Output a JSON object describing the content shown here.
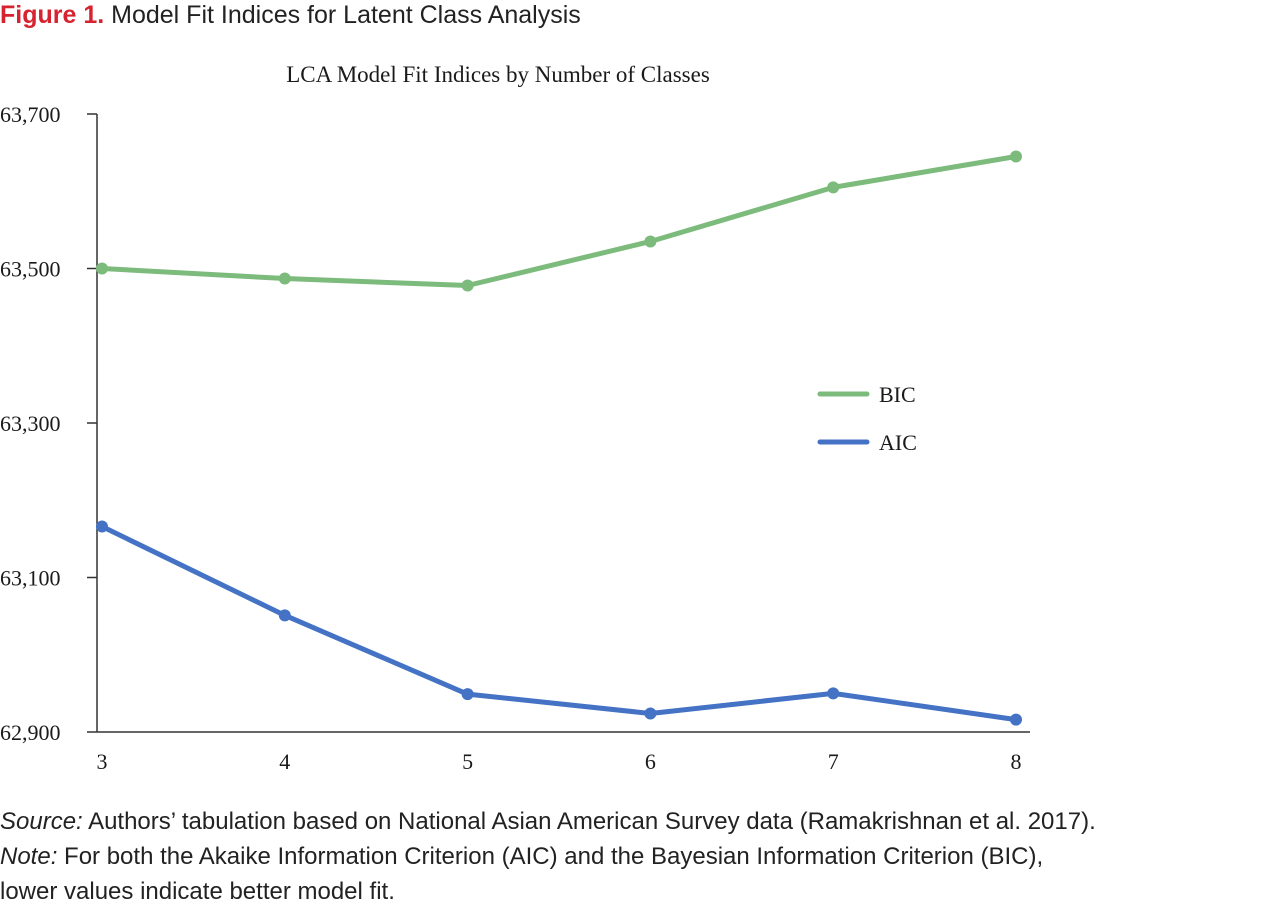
{
  "figure": {
    "label": "Figure 1.",
    "title": "Model Fit Indices for Latent Class Analysis"
  },
  "chart_data": {
    "type": "line",
    "title": "LCA Model Fit Indices by Number of Classes",
    "xlabel": "",
    "ylabel": "",
    "x": [
      3,
      4,
      5,
      6,
      7,
      8
    ],
    "x_tick_labels": [
      "3",
      "4",
      "5",
      "6",
      "7",
      "8"
    ],
    "ylim": [
      62900,
      63700
    ],
    "y_ticks": [
      62900,
      63100,
      63300,
      63500,
      63700
    ],
    "y_tick_labels": [
      "62,900",
      "63,100",
      "63,300",
      "63,500",
      "63,700"
    ],
    "grid": false,
    "legend_position": "right",
    "series": [
      {
        "name": "BIC",
        "color": "#7dbb7d",
        "values": [
          63500,
          63487,
          63478,
          63535,
          63605,
          63645
        ]
      },
      {
        "name": "AIC",
        "color": "#4472c4",
        "values": [
          63166,
          63051,
          62949,
          62924,
          62950,
          62916
        ]
      }
    ]
  },
  "notes": {
    "source_label": "Source:",
    "source_text": " Authors’ tabulation based on National Asian American Survey data (Ramakrishnan et al. 2017).",
    "note_label": "Note:",
    "note_text_line1": " For both the Akaike Information Criterion (AIC) and the Bayesian Information Criterion (BIC),",
    "note_text_line2": "lower values indicate better model fit."
  }
}
